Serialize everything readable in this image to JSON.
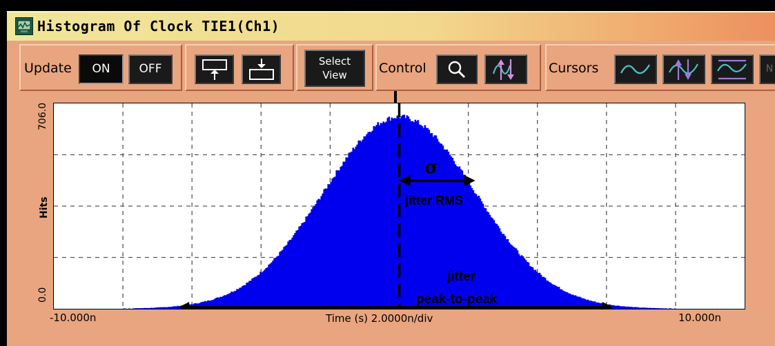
{
  "window": {
    "title": "Histogram Of Clock TIE1(Ch1)",
    "icon": "scope-app-icon"
  },
  "toolbar": {
    "update": {
      "label": "Update",
      "on": "ON",
      "off": "OFF"
    },
    "position_buttons": [
      {
        "icon": "move-trace-up-icon"
      },
      {
        "icon": "move-trace-down-icon"
      }
    ],
    "select_view": {
      "line1": "Select",
      "line2": "View"
    },
    "control": {
      "label": "Control",
      "zoom_icon": "magnifier-icon",
      "cursor_icon": "up-down-arrows-icon"
    },
    "cursors": {
      "label": "Cursors",
      "icons": [
        "sine-cursor-icon",
        "arrow-sine-cursor-icon",
        "bracket-sine-cursor-icon"
      ],
      "overflow_label": "N"
    }
  },
  "chart_data": {
    "type": "bar",
    "title": "",
    "ylabel": "Hits",
    "xlabel": "Time (s)  2.0000n/div",
    "y_tick_top": "706.0",
    "y_tick_bottom": "0.0",
    "x_tick_left": "-10.000n",
    "x_tick_right": "10.000n",
    "xlim": [
      -10.0,
      10.0
    ],
    "ylim": [
      0,
      706.0
    ],
    "grid": true,
    "x_unit": "ns",
    "distribution": {
      "shape": "gaussian",
      "mean": 0.0,
      "sigma": 2.2,
      "peak": 660
    },
    "color": "#0000ee",
    "annotations": {
      "sigma_symbol": "σ",
      "rms_label": "jitter RMS",
      "p2p_line1": "jitter",
      "p2p_line2": "peak-to-peak"
    },
    "markers": {
      "mean_line_x": 0.0,
      "rms_arrow": [
        0.0,
        2.2
      ],
      "p2p_arrow": [
        -6.4,
        6.2
      ]
    }
  }
}
